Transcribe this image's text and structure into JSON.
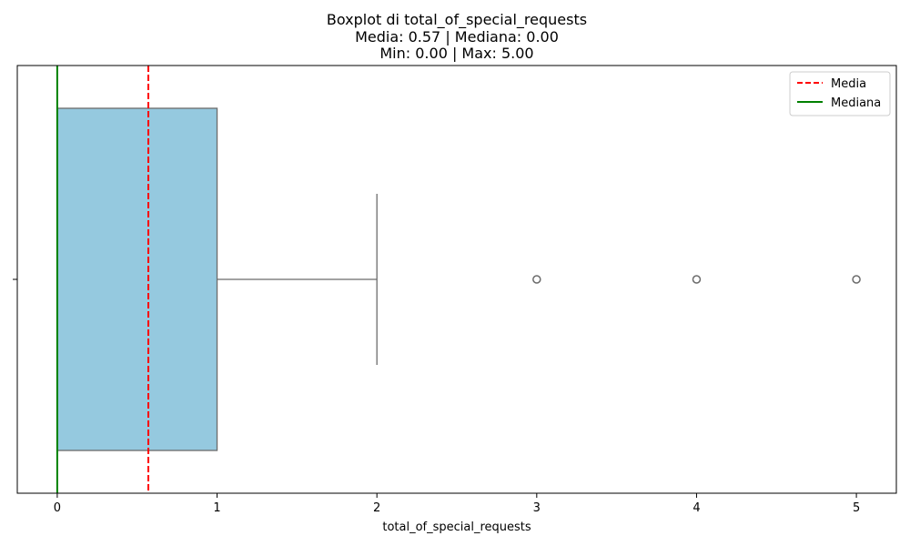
{
  "chart_data": {
    "type": "boxplot",
    "title_lines": [
      "Boxplot di total_of_special_requests",
      "Media: 0.57 | Mediana: 0.00",
      "Min: 0.00 | Max: 5.00"
    ],
    "xlabel": "total_of_special_requests",
    "ylabel": "",
    "xlim": [
      -0.25,
      5.25
    ],
    "xticks": [
      0,
      1,
      2,
      3,
      4,
      5
    ],
    "xtick_labels": [
      "0",
      "1",
      "2",
      "3",
      "4",
      "5"
    ],
    "box": {
      "q1": 0,
      "median": 0,
      "q3": 1,
      "whisker_low": 0,
      "whisker_high": 2,
      "fill_color": "#95c9df",
      "edge_color": "#6b6b6b"
    },
    "outliers": [
      3,
      4,
      5
    ],
    "reference_lines": [
      {
        "name": "Media",
        "value": 0.57,
        "color": "#ff0000",
        "style": "dashed"
      },
      {
        "name": "Mediana",
        "value": 0.0,
        "color": "#008000",
        "style": "solid"
      }
    ],
    "legend": {
      "position": "top-right",
      "entries": [
        {
          "label": "Media",
          "color": "#ff0000",
          "style": "dashed"
        },
        {
          "label": "Mediana",
          "color": "#008000",
          "style": "solid"
        }
      ]
    },
    "grid": false
  }
}
